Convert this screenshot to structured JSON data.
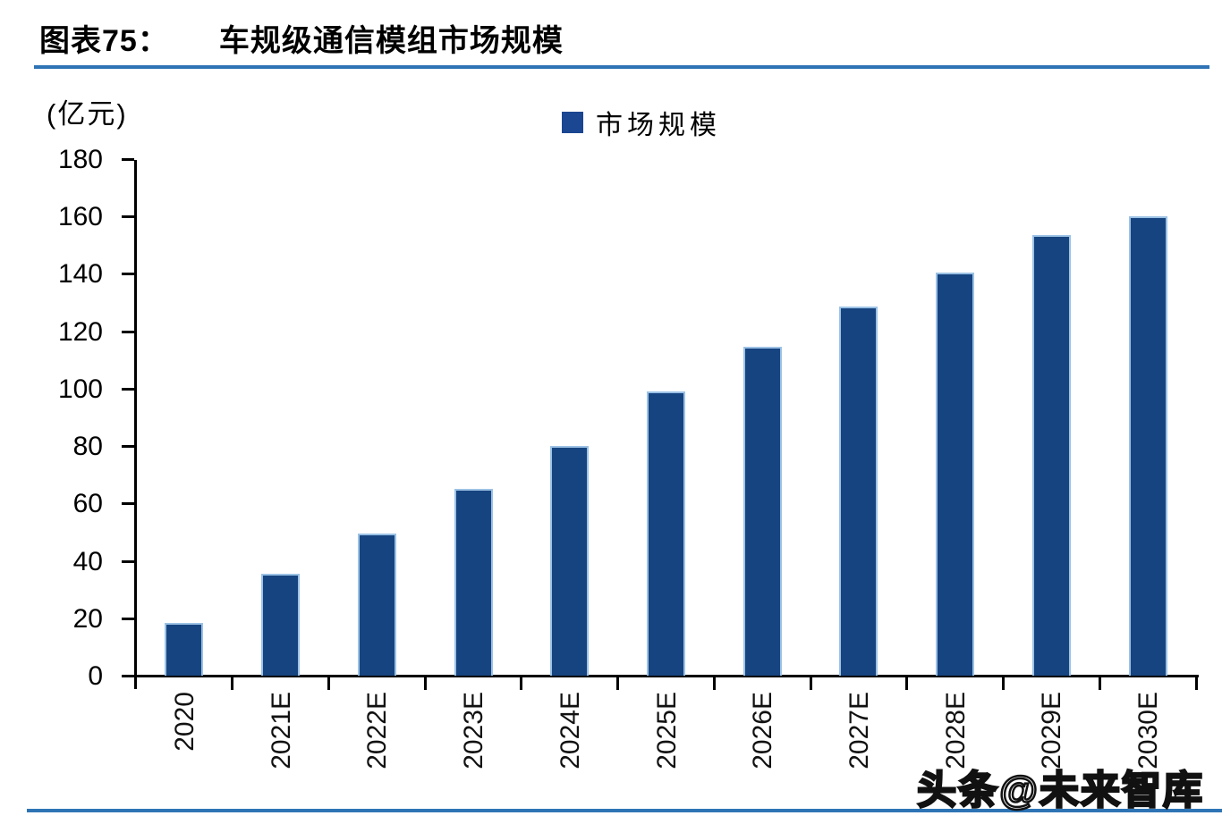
{
  "header": {
    "figure_label": "图表75：",
    "title": "车规级通信模组市场规模"
  },
  "y_unit_label": "(亿元)",
  "legend": {
    "label": "市场规模"
  },
  "watermark": "头条@未来智库",
  "colors": {
    "bar_fill": "#164480",
    "bar_border": "#9CC2E5",
    "legend_square": "#1B4691",
    "accent_line": "#2E74B5",
    "axis": "#000000"
  },
  "chart_data": {
    "type": "bar",
    "title": "车规级通信模组市场规模",
    "ylabel": "(亿元)",
    "categories": [
      "2020",
      "2021E",
      "2022E",
      "2023E",
      "2024E",
      "2025E",
      "2026E",
      "2027E",
      "2028E",
      "2029E",
      "2030E"
    ],
    "series": [
      {
        "name": "市场规模",
        "values": [
          18.5,
          35.5,
          49.5,
          65,
          80,
          99,
          114.5,
          128.5,
          140.5,
          153.5,
          160
        ]
      }
    ],
    "ylim": [
      0,
      180
    ],
    "yticks": [
      0,
      20,
      40,
      60,
      80,
      100,
      120,
      140,
      160,
      180
    ],
    "grid": false,
    "legend_position": "top-center"
  }
}
